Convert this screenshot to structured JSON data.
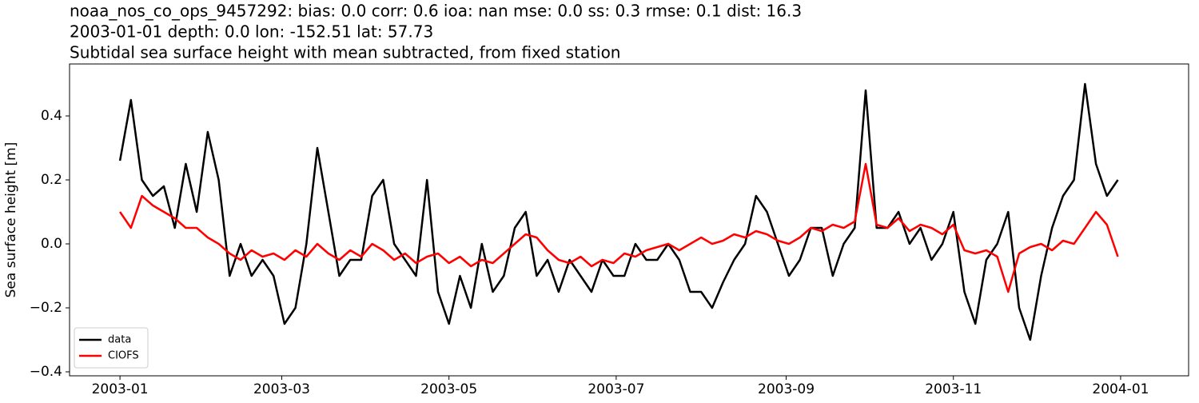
{
  "chart_data": {
    "type": "line",
    "title_lines": [
      "noaa_nos_co_ops_9457292: bias: 0.0  corr: 0.6  ioa: nan  mse: 0.0  ss: 0.3  rmse: 0.1  dist: 16.3",
      "2003-01-01 depth: 0.0 lon: -152.51 lat: 57.73",
      "Subtidal sea surface height with mean subtracted, from fixed station"
    ],
    "y_label": "Sea surface height [m]",
    "x": [
      0,
      4,
      8,
      12,
      16,
      20,
      24,
      28,
      32,
      36,
      40,
      44,
      48,
      52,
      56,
      60,
      64,
      68,
      72,
      76,
      80,
      84,
      88,
      92,
      96,
      100,
      104,
      108,
      112,
      116,
      120,
      124,
      128,
      132,
      136,
      140,
      144,
      148,
      152,
      156,
      160,
      164,
      168,
      172,
      176,
      180,
      184,
      188,
      192,
      196,
      200,
      204,
      208,
      212,
      216,
      220,
      224,
      228,
      232,
      236,
      240,
      244,
      248,
      252,
      256,
      260,
      264,
      268,
      272,
      276,
      280,
      284,
      288,
      292,
      296,
      300,
      304,
      308,
      312,
      316,
      320,
      324,
      328,
      332,
      336,
      340,
      344,
      348,
      352,
      356,
      360,
      364
    ],
    "series": [
      {
        "name": "data",
        "color": "#000000",
        "values": [
          0.26,
          0.45,
          0.2,
          0.15,
          0.18,
          0.05,
          0.25,
          0.1,
          0.35,
          0.2,
          -0.1,
          0.0,
          -0.1,
          -0.05,
          -0.1,
          -0.25,
          -0.2,
          0.0,
          0.3,
          0.1,
          -0.1,
          -0.05,
          -0.05,
          0.15,
          0.2,
          0.0,
          -0.05,
          -0.1,
          0.2,
          -0.15,
          -0.25,
          -0.1,
          -0.2,
          0.0,
          -0.15,
          -0.1,
          0.05,
          0.1,
          -0.1,
          -0.05,
          -0.15,
          -0.05,
          -0.1,
          -0.15,
          -0.05,
          -0.1,
          -0.1,
          0.0,
          -0.05,
          -0.05,
          0.0,
          -0.05,
          -0.15,
          -0.15,
          -0.2,
          -0.12,
          -0.05,
          0.0,
          0.15,
          0.1,
          0.0,
          -0.1,
          -0.05,
          0.05,
          0.05,
          -0.1,
          0.0,
          0.05,
          0.48,
          0.05,
          0.05,
          0.1,
          0.0,
          0.05,
          -0.05,
          0.0,
          0.1,
          -0.15,
          -0.25,
          -0.05,
          0.0,
          0.1,
          -0.2,
          -0.3,
          -0.1,
          0.05,
          0.15,
          0.2,
          0.5,
          0.25,
          0.15,
          0.2
        ]
      },
      {
        "name": "CIOFS",
        "color": "#ff0000",
        "values": [
          0.1,
          0.05,
          0.15,
          0.12,
          0.1,
          0.08,
          0.05,
          0.05,
          0.02,
          0.0,
          -0.03,
          -0.05,
          -0.02,
          -0.04,
          -0.03,
          -0.05,
          -0.02,
          -0.04,
          0.0,
          -0.03,
          -0.05,
          -0.02,
          -0.04,
          0.0,
          -0.02,
          -0.05,
          -0.03,
          -0.06,
          -0.04,
          -0.03,
          -0.06,
          -0.04,
          -0.07,
          -0.05,
          -0.06,
          -0.03,
          0.0,
          0.03,
          0.02,
          -0.02,
          -0.05,
          -0.06,
          -0.04,
          -0.07,
          -0.05,
          -0.06,
          -0.03,
          -0.04,
          -0.02,
          -0.01,
          0.0,
          -0.02,
          0.0,
          0.02,
          0.0,
          0.01,
          0.03,
          0.02,
          0.04,
          0.03,
          0.01,
          0.0,
          0.02,
          0.05,
          0.04,
          0.06,
          0.05,
          0.07,
          0.25,
          0.06,
          0.05,
          0.08,
          0.04,
          0.06,
          0.05,
          0.03,
          0.06,
          -0.02,
          -0.03,
          -0.02,
          -0.04,
          -0.15,
          -0.03,
          -0.01,
          0.0,
          -0.02,
          0.01,
          0.0,
          0.05,
          0.1,
          0.06,
          -0.04
        ]
      }
    ],
    "xlim": [
      -18.4,
      389.8
    ],
    "xticks": [
      {
        "value": 0,
        "label": "2003-01"
      },
      {
        "value": 59,
        "label": "2003-03"
      },
      {
        "value": 120,
        "label": "2003-05"
      },
      {
        "value": 181,
        "label": "2003-07"
      },
      {
        "value": 243,
        "label": "2003-09"
      },
      {
        "value": 304,
        "label": "2003-11"
      },
      {
        "value": 365,
        "label": "2004-01"
      }
    ],
    "ylim": [
      -0.4125,
      0.5625
    ],
    "yticks": [
      {
        "value": -0.4,
        "label": "−0.4"
      },
      {
        "value": -0.2,
        "label": "−0.2"
      },
      {
        "value": 0,
        "label": "0.0"
      },
      0.2,
      0.4
    ],
    "legend": "lower left"
  }
}
